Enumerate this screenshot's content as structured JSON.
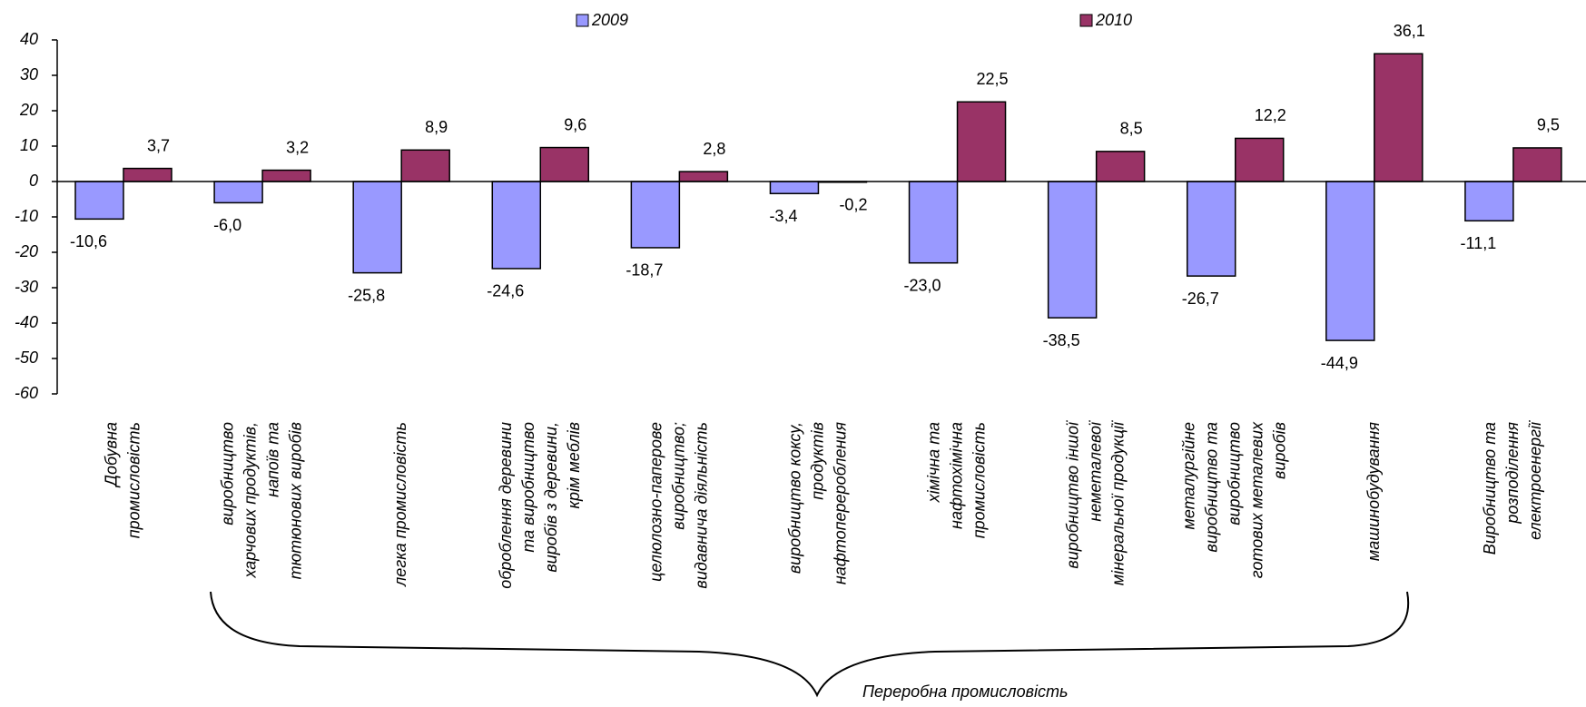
{
  "chart_data": {
    "type": "bar",
    "categories": [
      "Добувна\nпромисловість",
      "виробництво\nхарчових продуктів,\nнапоїв та\nтютюнових виробів",
      "легка промисловість",
      "оброблення деревини\nта виробництво\nвиробів з деревини,\nкрім меблів",
      "целюлозно-паперове\nвиробництво;\nвидавнича діяльність",
      "виробництво коксу,\nпродуктів\nнафтопереробления",
      "хімічна та\nнафтохімічна\nпромисловість",
      "виробництво іншої\nнеметалевої\nмінеральної продукції",
      "металургійне\nвиробництво та\nвиробництво\nготових металевих\nвиробів",
      "машинобудування",
      "Виробництво та\nрозподілення\nелектроенергії"
    ],
    "series": [
      {
        "name": "2009",
        "color": "#9999ff",
        "values": [
          -10.6,
          -6.0,
          -25.8,
          -24.6,
          -18.7,
          -3.4,
          -23.0,
          -38.5,
          -26.7,
          -44.9,
          -11.1
        ],
        "value_labels": [
          "-10,6",
          "-6,0",
          "-25,8",
          "-24,6",
          "-18,7",
          "-3,4",
          "-23,0",
          "-38,5",
          "-26,7",
          "-44,9",
          "-11,1"
        ]
      },
      {
        "name": "2010",
        "color": "#993366",
        "values": [
          3.7,
          3.2,
          8.9,
          9.6,
          2.8,
          -0.2,
          22.5,
          8.5,
          12.2,
          36.1,
          9.5
        ],
        "value_labels": [
          "3,7",
          "3,2",
          "8,9",
          "9,6",
          "2,8",
          "-0,2",
          "22,5",
          "8,5",
          "12,2",
          "36,1",
          "9,5"
        ]
      }
    ],
    "ylim": [
      -60,
      40
    ],
    "yticks": [
      -60,
      -50,
      -40,
      -30,
      -20,
      -10,
      0,
      10,
      20,
      30,
      40
    ],
    "legend": "top",
    "annotations": [
      "Переробна промисловість"
    ]
  }
}
